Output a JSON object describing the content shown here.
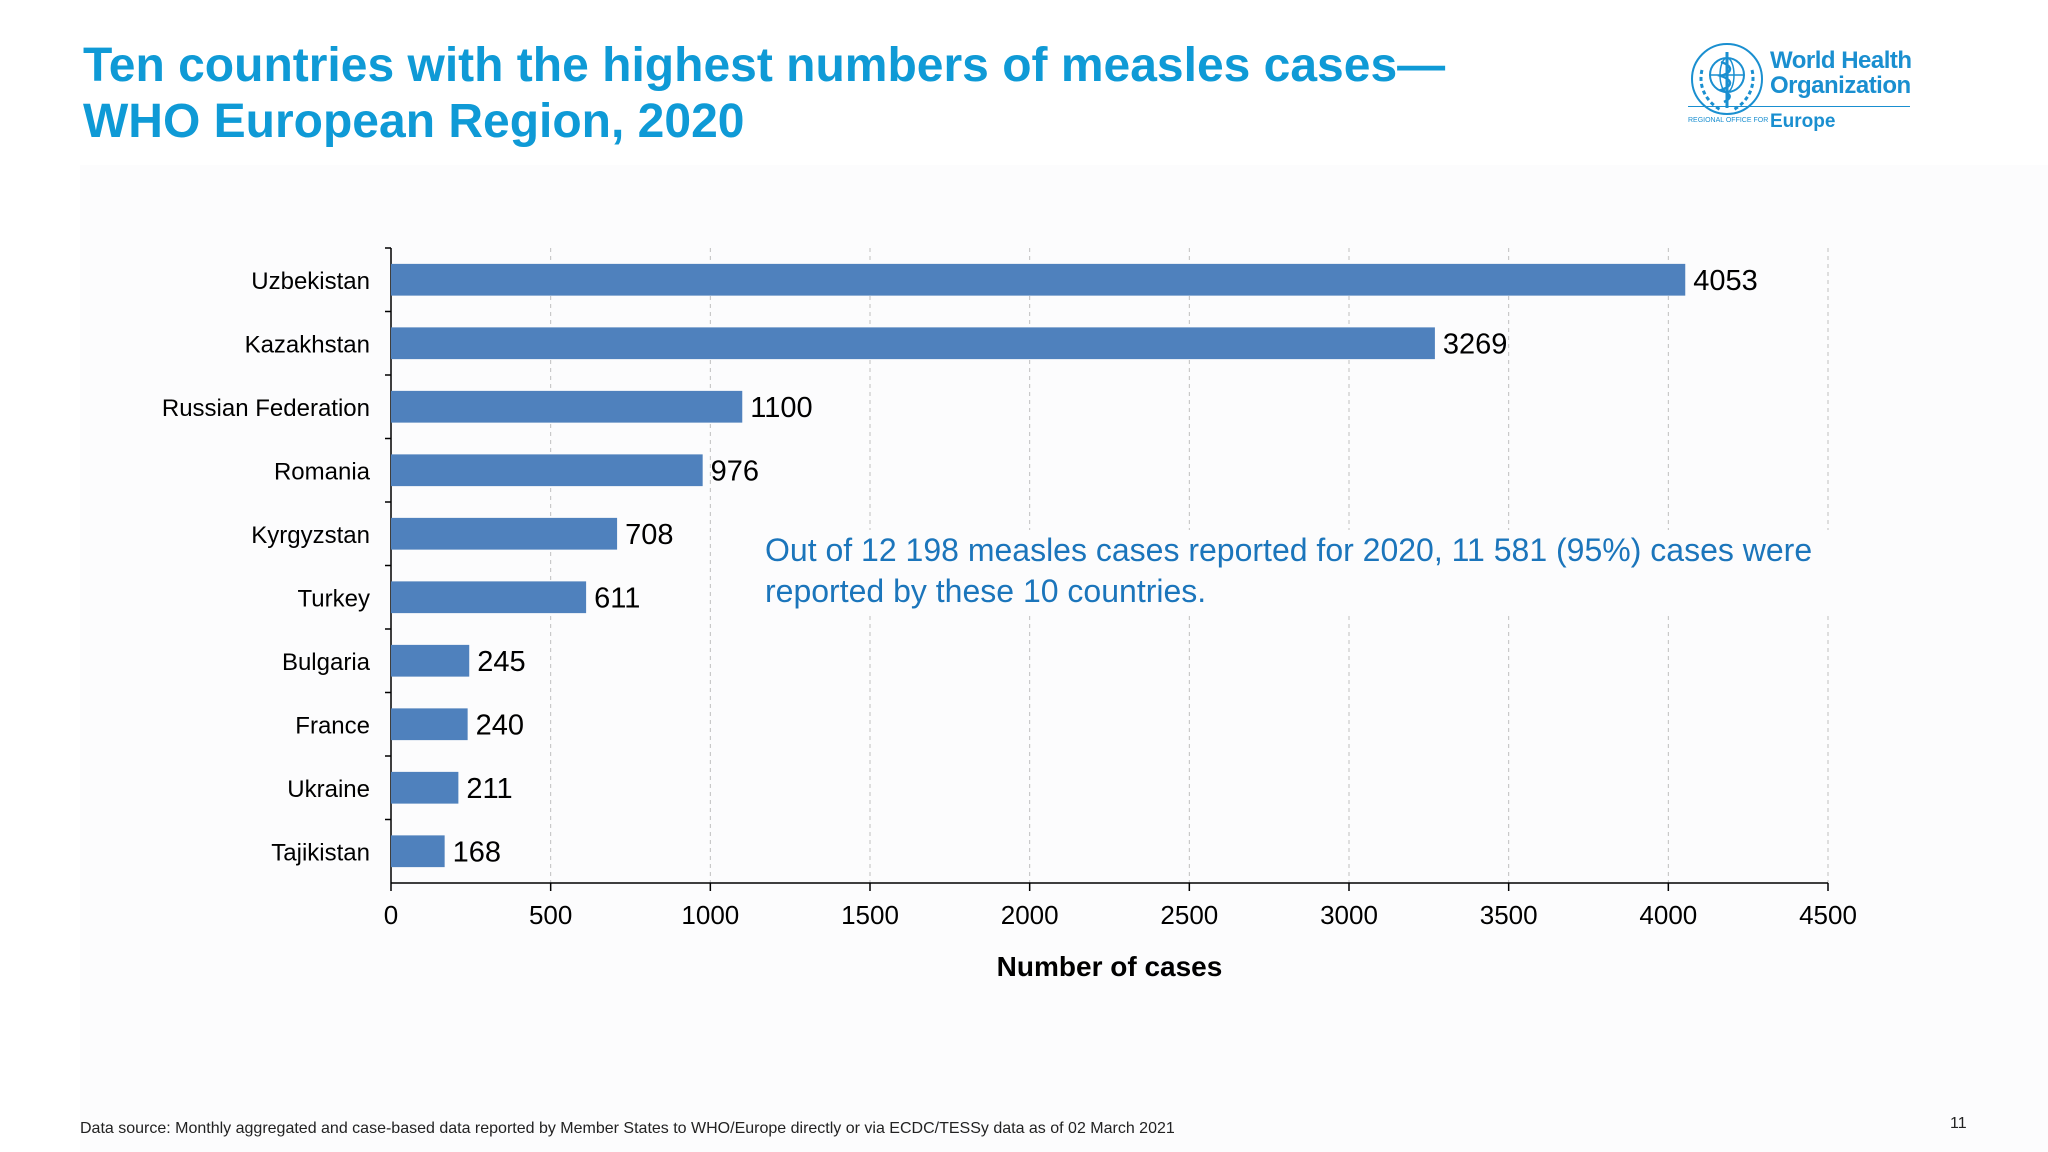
{
  "slide": {
    "title_line1": "Ten countries with the highest numbers of measles cases—",
    "title_line2": "WHO European Region, 2020",
    "annotation": "Out of 12 198 measles cases reported for 2020, 11 581 (95%) cases were reported by these 10 countries.",
    "source": "Data source: Monthly aggregated and case-based data reported by Member States to WHO/Europe directly or via ECDC/TESSy data as of 02 March 2021",
    "page_number": "11"
  },
  "logo": {
    "line1": "World Health",
    "line2": "Organization",
    "regional": "REGIONAL OFFICE FOR",
    "region": "Europe"
  },
  "colors": {
    "title": "#0f9ad6",
    "bar": "#4f81bd",
    "annotation": "#1b75bb"
  },
  "chart_data": {
    "type": "bar",
    "orientation": "horizontal",
    "categories": [
      "Uzbekistan",
      "Kazakhstan",
      "Russian Federation",
      "Romania",
      "Kyrgyzstan",
      "Turkey",
      "Bulgaria",
      "France",
      "Ukraine",
      "Tajikistan"
    ],
    "values": [
      4053,
      3269,
      1100,
      976,
      708,
      611,
      245,
      240,
      211,
      168
    ],
    "xlabel": "Number of cases",
    "ylabel": "",
    "xlim": [
      0,
      4500
    ],
    "xticks": [
      0,
      500,
      1000,
      1500,
      2000,
      2500,
      3000,
      3500,
      4000,
      4500
    ],
    "grid": "vertical dashed",
    "data_labels": true
  }
}
